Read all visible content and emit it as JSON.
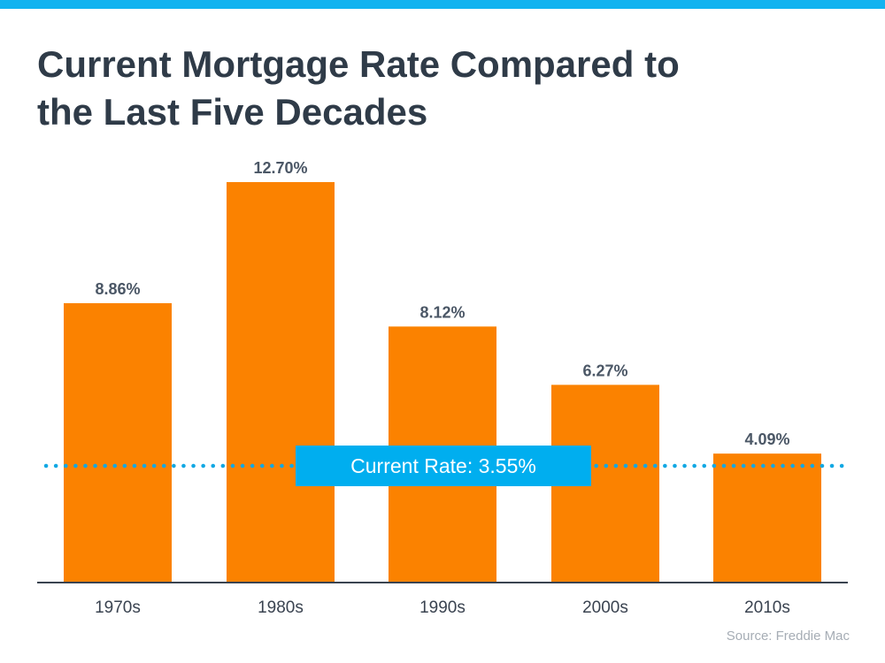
{
  "header": {
    "title_line1": "Current Mortgage Rate Compared to",
    "title_line2": "the Last Five Decades"
  },
  "colors": {
    "top_bar": "#12b3f0",
    "bar": "#fb8200",
    "title": "#2f3b48",
    "value_label": "#4b5766",
    "tick_label": "#3a4350",
    "axis": "#3a4350",
    "reference_line": "#12a8e3",
    "reference_box": "#00aeef",
    "reference_text": "#ffffff",
    "source": "#a6adb5"
  },
  "chart_data": {
    "type": "bar",
    "title": "Current Mortgage Rate Compared to the Last Five Decades",
    "categories": [
      "1970s",
      "1980s",
      "1990s",
      "2000s",
      "2010s"
    ],
    "values": [
      8.86,
      12.7,
      8.12,
      6.27,
      4.09
    ],
    "value_labels": [
      "8.86%",
      "12.70%",
      "8.12%",
      "6.27%",
      "4.09%"
    ],
    "ylim": [
      0,
      12.7
    ],
    "grid": false,
    "legend": "none",
    "reference_line": {
      "value": 3.55,
      "label": "Current Rate: 3.55%",
      "style": "dotted"
    }
  },
  "footer": {
    "source": "Source: Freddie Mac"
  }
}
